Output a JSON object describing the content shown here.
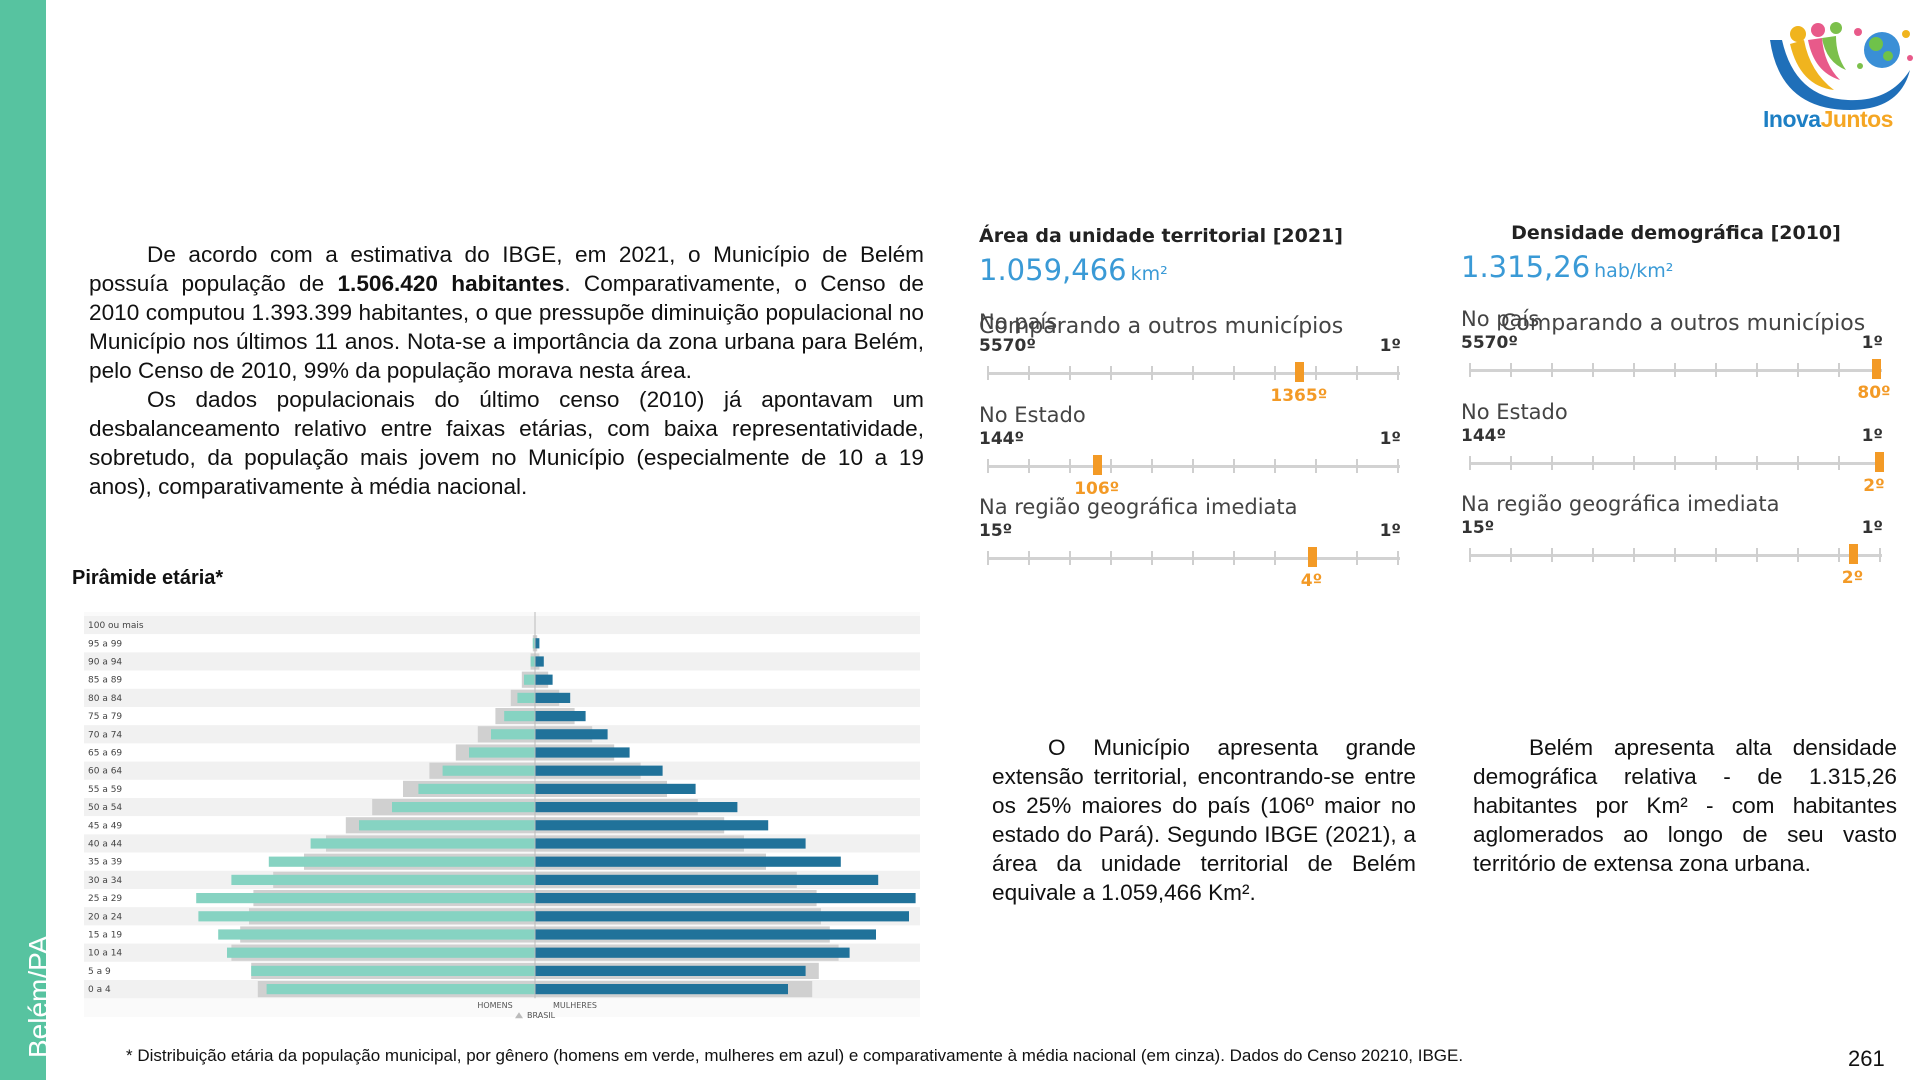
{
  "sidebar": {
    "label": "Belém/PA"
  },
  "logo": {
    "text_a": "Inova",
    "text_b": "Juntos"
  },
  "intro": {
    "p1_pre": "De acordo com a estimativa do IBGE, em 2021, o Município de Belém possuía população de ",
    "p1_bold": "1.506.420 habitantes",
    "p1_post": ". Comparativamente, o Censo de 2010 computou 1.393.399 habitantes, o que pressupõe diminuição populacional no Município nos últimos 11 anos. Nota-se a importância da zona urbana para Belém, pelo Censo de 2010, 99% da população morava nesta área.",
    "p2": "Os dados populacionais do último censo (2010) já apontavam um desbalanceamento relativo entre faixas etárias, com baixa representatividade, sobretudo, da população mais jovem no Município (especialmente de 10 a 19 anos), comparativamente à média nacional."
  },
  "pyramid_title": "Pirâmide etária*",
  "chart_data": {
    "type": "bar",
    "orientation": "horizontal-pyramid",
    "categories": [
      "100 ou mais",
      "95 a 99",
      "90 a 94",
      "85 a 89",
      "80 a 84",
      "75 a 79",
      "70 a 74",
      "65 a 69",
      "60 a 64",
      "55 a 59",
      "50 a 54",
      "45 a 49",
      "40 a 44",
      "35 a 39",
      "30 a 34",
      "25 a 29",
      "20 a 24",
      "15 a 19",
      "10 a 14",
      "5 a 9",
      "0 a 4"
    ],
    "series": [
      {
        "name": "HOMENS",
        "color": "#86d3c2",
        "values": [
          0.0,
          0.1,
          0.2,
          0.5,
          0.8,
          1.4,
          2.0,
          3.0,
          4.2,
          5.3,
          6.5,
          8.0,
          10.2,
          12.1,
          13.8,
          15.4,
          15.3,
          14.4,
          14.0,
          12.9,
          12.2
        ]
      },
      {
        "name": "MULHERES",
        "color": "#20729a",
        "values": [
          0.0,
          0.2,
          0.4,
          0.8,
          1.6,
          2.3,
          3.3,
          4.3,
          5.8,
          7.3,
          9.2,
          10.6,
          12.3,
          13.9,
          15.6,
          17.3,
          17.0,
          15.5,
          14.3,
          12.3,
          11.5
        ]
      },
      {
        "name": "BRASIL",
        "color": "#d0d0d0",
        "values": [
          0.0,
          0.1,
          0.2,
          0.6,
          1.1,
          1.8,
          2.6,
          3.6,
          4.8,
          6.0,
          7.4,
          8.6,
          9.5,
          10.5,
          11.9,
          12.8,
          13.0,
          13.4,
          13.8,
          12.9,
          12.6
        ]
      }
    ],
    "legend": [
      "HOMENS",
      "MULHERES",
      "BRASIL"
    ]
  },
  "area_panel": {
    "title": "Área da unidade territorial [2021]",
    "value": "1.059,466",
    "unit": "km²",
    "compare": "Comparando a outros municípios",
    "ranks": [
      {
        "label": "No país",
        "min": "5570º",
        "max": "1º",
        "value": "1365º",
        "total": 5570,
        "rank": 1365
      },
      {
        "label": "No Estado",
        "min": "144º",
        "max": "1º",
        "value": "106º",
        "total": 144,
        "rank": 106
      },
      {
        "label": "Na região geográfica imediata",
        "min": "15º",
        "max": "1º",
        "value": "4º",
        "total": 15,
        "rank": 4
      }
    ]
  },
  "density_panel": {
    "title": "Densidade demográfica [2010]",
    "value": "1.315,26",
    "unit": "hab/km²",
    "compare": "Comparando a outros municípios",
    "ranks": [
      {
        "label": "No país",
        "min": "5570º",
        "max": "1º",
        "value": "80º",
        "total": 5570,
        "rank": 80
      },
      {
        "label": "No Estado",
        "min": "144º",
        "max": "1º",
        "value": "2º",
        "total": 144,
        "rank": 2
      },
      {
        "label": "Na região geográfica imediata",
        "min": "15º",
        "max": "1º",
        "value": "2º",
        "total": 15,
        "rank": 2
      }
    ]
  },
  "area_desc": "O Município apresenta grande extensão territorial, encontrando-se entre os 25% maiores do país (106º maior no estado do Pará). Segundo IBGE (2021), a área da unidade territorial de Belém equivale a 1.059,466 Km².",
  "density_desc": "Belém apresenta alta densidade demográfica relativa - de 1.315,26 habitantes por Km² - com habitantes aglomerados ao longo de seu vasto território de extensa zona urbana.",
  "footnote": "* Distribuição etária da população municipal, por gênero (homens em verde, mulheres em azul) e comparativamente à média nacional (em cinza). Dados do Censo 20210, IBGE.",
  "page_number": "261"
}
